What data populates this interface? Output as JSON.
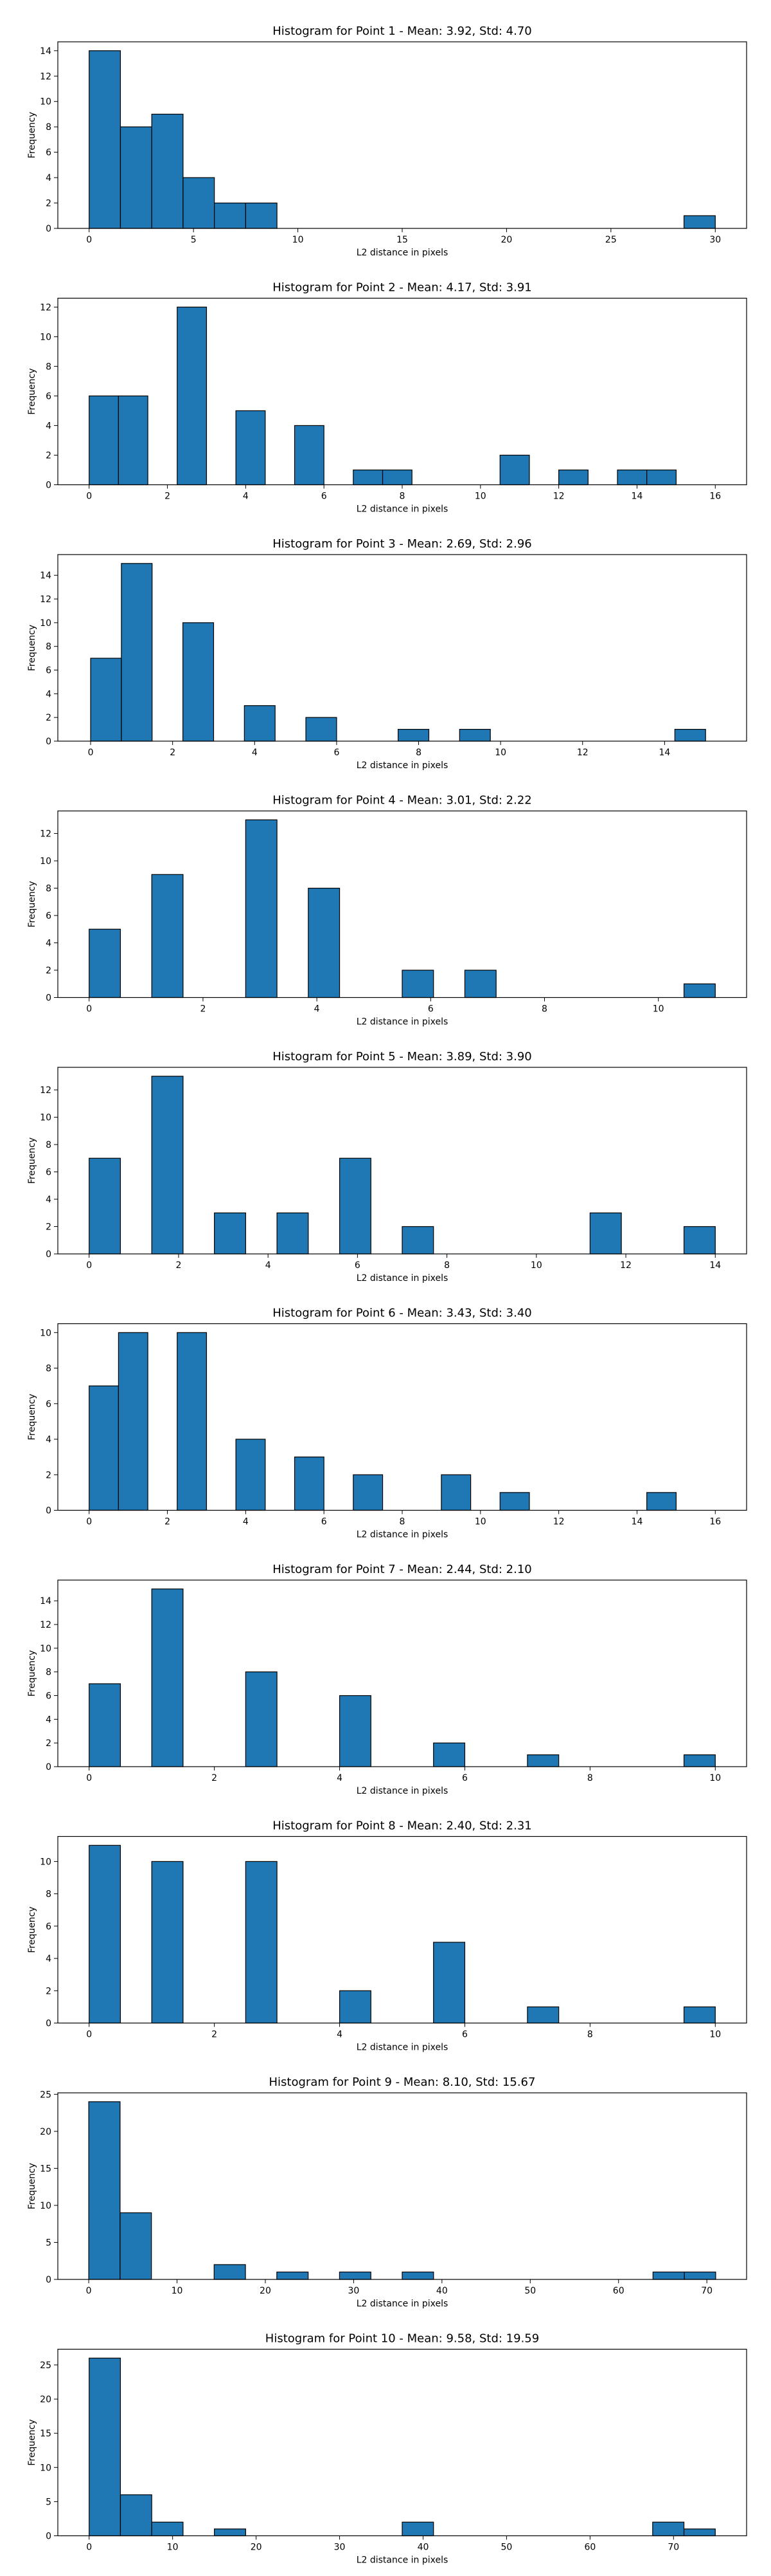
{
  "figure": {
    "bar_color": "#1f77b4",
    "edge_color": "#000000"
  },
  "chart_data": [
    {
      "type": "bar",
      "title": "Histogram for Point 1 - Mean: 3.92, Std: 4.70",
      "xlabel": "L2 distance in pixels",
      "ylabel": "Frequency",
      "xlim": [
        -1.5,
        31.5
      ],
      "ylim": [
        0,
        14.7
      ],
      "xticks": [
        0,
        5,
        10,
        15,
        20,
        25,
        30
      ],
      "yticks": [
        0,
        2,
        4,
        6,
        8,
        10,
        12,
        14
      ],
      "bins": [
        {
          "x0": 0.0,
          "x1": 1.5,
          "count": 14
        },
        {
          "x0": 1.5,
          "x1": 3.0,
          "count": 8
        },
        {
          "x0": 3.0,
          "x1": 4.5,
          "count": 9
        },
        {
          "x0": 4.5,
          "x1": 6.0,
          "count": 4
        },
        {
          "x0": 6.0,
          "x1": 7.5,
          "count": 2
        },
        {
          "x0": 7.5,
          "x1": 9.0,
          "count": 2
        },
        {
          "x0": 28.5,
          "x1": 30.0,
          "count": 1
        }
      ]
    },
    {
      "type": "bar",
      "title": "Histogram for Point 2 - Mean: 4.17, Std: 3.91",
      "xlabel": "L2 distance in pixels",
      "ylabel": "Frequency",
      "xlim": [
        -0.8,
        16.8
      ],
      "ylim": [
        0,
        12.6
      ],
      "xticks": [
        0,
        2,
        4,
        6,
        8,
        10,
        12,
        14,
        16
      ],
      "yticks": [
        0,
        2,
        4,
        6,
        8,
        10,
        12
      ],
      "bins": [
        {
          "x0": 0.0,
          "x1": 0.75,
          "count": 6
        },
        {
          "x0": 0.75,
          "x1": 1.5,
          "count": 6
        },
        {
          "x0": 2.25,
          "x1": 3.0,
          "count": 12
        },
        {
          "x0": 3.75,
          "x1": 4.5,
          "count": 5
        },
        {
          "x0": 5.25,
          "x1": 6.0,
          "count": 4
        },
        {
          "x0": 6.75,
          "x1": 7.5,
          "count": 1
        },
        {
          "x0": 7.5,
          "x1": 8.25,
          "count": 1
        },
        {
          "x0": 10.5,
          "x1": 11.25,
          "count": 2
        },
        {
          "x0": 12.0,
          "x1": 12.75,
          "count": 1
        },
        {
          "x0": 13.5,
          "x1": 14.25,
          "count": 1
        },
        {
          "x0": 14.25,
          "x1": 15.0,
          "count": 1
        }
      ]
    },
    {
      "type": "bar",
      "title": "Histogram for Point 3 - Mean: 2.69, Std: 2.96",
      "xlabel": "L2 distance in pixels",
      "ylabel": "Frequency",
      "xlim": [
        -0.8,
        16.0
      ],
      "ylim": [
        0,
        15.75
      ],
      "xticks": [
        0,
        2,
        4,
        6,
        8,
        10,
        12,
        14
      ],
      "yticks": [
        0,
        2,
        4,
        6,
        8,
        10,
        12,
        14
      ],
      "bins": [
        {
          "x0": 0.0,
          "x1": 0.75,
          "count": 7
        },
        {
          "x0": 0.75,
          "x1": 1.5,
          "count": 15
        },
        {
          "x0": 2.25,
          "x1": 3.0,
          "count": 10
        },
        {
          "x0": 3.75,
          "x1": 4.5,
          "count": 3
        },
        {
          "x0": 5.25,
          "x1": 6.0,
          "count": 2
        },
        {
          "x0": 7.5,
          "x1": 8.25,
          "count": 1
        },
        {
          "x0": 9.0,
          "x1": 9.75,
          "count": 1
        },
        {
          "x0": 14.25,
          "x1": 15.0,
          "count": 1
        }
      ]
    },
    {
      "type": "bar",
      "title": "Histogram for Point 4 - Mean: 3.01, Std: 2.22",
      "xlabel": "L2 distance in pixels",
      "ylabel": "Frequency",
      "xlim": [
        -0.55,
        11.55
      ],
      "ylim": [
        0,
        13.65
      ],
      "xticks": [
        0,
        2,
        4,
        6,
        8,
        10
      ],
      "yticks": [
        0,
        2,
        4,
        6,
        8,
        10,
        12
      ],
      "bins": [
        {
          "x0": 0.0,
          "x1": 0.55,
          "count": 5
        },
        {
          "x0": 1.1,
          "x1": 1.65,
          "count": 9
        },
        {
          "x0": 2.75,
          "x1": 3.3,
          "count": 13
        },
        {
          "x0": 3.85,
          "x1": 4.4,
          "count": 8
        },
        {
          "x0": 5.5,
          "x1": 6.05,
          "count": 2
        },
        {
          "x0": 6.6,
          "x1": 7.15,
          "count": 2
        },
        {
          "x0": 10.45,
          "x1": 11.0,
          "count": 1
        }
      ]
    },
    {
      "type": "bar",
      "title": "Histogram for Point 5 - Mean: 3.89, Std: 3.90",
      "xlabel": "L2 distance in pixels",
      "ylabel": "Frequency",
      "xlim": [
        -0.7,
        14.7
      ],
      "ylim": [
        0,
        13.65
      ],
      "xticks": [
        0,
        2,
        4,
        6,
        8,
        10,
        12,
        14
      ],
      "yticks": [
        0,
        2,
        4,
        6,
        8,
        10,
        12
      ],
      "bins": [
        {
          "x0": 0.0,
          "x1": 0.7,
          "count": 7
        },
        {
          "x0": 1.4,
          "x1": 2.1,
          "count": 13
        },
        {
          "x0": 2.8,
          "x1": 3.5,
          "count": 3
        },
        {
          "x0": 4.2,
          "x1": 4.9,
          "count": 3
        },
        {
          "x0": 5.6,
          "x1": 6.3,
          "count": 7
        },
        {
          "x0": 7.0,
          "x1": 7.7,
          "count": 2
        },
        {
          "x0": 11.2,
          "x1": 11.9,
          "count": 3
        },
        {
          "x0": 13.3,
          "x1": 14.0,
          "count": 2
        }
      ]
    },
    {
      "type": "bar",
      "title": "Histogram for Point 6 - Mean: 3.43, Std: 3.40",
      "xlabel": "L2 distance in pixels",
      "ylabel": "Frequency",
      "xlim": [
        -0.8,
        16.8
      ],
      "ylim": [
        0,
        10.5
      ],
      "xticks": [
        0,
        2,
        4,
        6,
        8,
        10,
        12,
        14,
        16
      ],
      "yticks": [
        0,
        2,
        4,
        6,
        8,
        10
      ],
      "bins": [
        {
          "x0": 0.0,
          "x1": 0.75,
          "count": 7
        },
        {
          "x0": 0.75,
          "x1": 1.5,
          "count": 10
        },
        {
          "x0": 2.25,
          "x1": 3.0,
          "count": 10
        },
        {
          "x0": 3.75,
          "x1": 4.5,
          "count": 4
        },
        {
          "x0": 5.25,
          "x1": 6.0,
          "count": 3
        },
        {
          "x0": 6.75,
          "x1": 7.5,
          "count": 2
        },
        {
          "x0": 9.0,
          "x1": 9.75,
          "count": 2
        },
        {
          "x0": 10.5,
          "x1": 11.25,
          "count": 1
        },
        {
          "x0": 14.25,
          "x1": 15.0,
          "count": 1
        }
      ]
    },
    {
      "type": "bar",
      "title": "Histogram for Point 7 - Mean: 2.44, Std: 2.10",
      "xlabel": "L2 distance in pixels",
      "ylabel": "Frequency",
      "xlim": [
        -0.5,
        10.5
      ],
      "ylim": [
        0,
        15.75
      ],
      "xticks": [
        0,
        2,
        4,
        6,
        8,
        10
      ],
      "yticks": [
        0,
        2,
        4,
        6,
        8,
        10,
        12,
        14
      ],
      "bins": [
        {
          "x0": 0.0,
          "x1": 0.5,
          "count": 7
        },
        {
          "x0": 1.0,
          "x1": 1.5,
          "count": 15
        },
        {
          "x0": 2.5,
          "x1": 3.0,
          "count": 8
        },
        {
          "x0": 4.0,
          "x1": 4.5,
          "count": 6
        },
        {
          "x0": 5.5,
          "x1": 6.0,
          "count": 2
        },
        {
          "x0": 7.0,
          "x1": 7.5,
          "count": 1
        },
        {
          "x0": 9.5,
          "x1": 10.0,
          "count": 1
        }
      ]
    },
    {
      "type": "bar",
      "title": "Histogram for Point 8 - Mean: 2.40, Std: 2.31",
      "xlabel": "L2 distance in pixels",
      "ylabel": "Frequency",
      "xlim": [
        -0.5,
        10.5
      ],
      "ylim": [
        0,
        11.55
      ],
      "xticks": [
        0,
        2,
        4,
        6,
        8,
        10
      ],
      "yticks": [
        0,
        2,
        4,
        6,
        8,
        10
      ],
      "bins": [
        {
          "x0": 0.0,
          "x1": 0.5,
          "count": 11
        },
        {
          "x0": 1.0,
          "x1": 1.5,
          "count": 10
        },
        {
          "x0": 2.5,
          "x1": 3.0,
          "count": 10
        },
        {
          "x0": 4.0,
          "x1": 4.5,
          "count": 2
        },
        {
          "x0": 5.5,
          "x1": 6.0,
          "count": 5
        },
        {
          "x0": 7.0,
          "x1": 7.5,
          "count": 1
        },
        {
          "x0": 9.5,
          "x1": 10.0,
          "count": 1
        }
      ]
    },
    {
      "type": "bar",
      "title": "Histogram for Point 9 - Mean: 8.10, Std: 15.67",
      "xlabel": "L2 distance in pixels",
      "ylabel": "Frequency",
      "xlim": [
        -3.5,
        74.5
      ],
      "ylim": [
        0,
        25.2
      ],
      "xticks": [
        0,
        10,
        20,
        30,
        40,
        50,
        60,
        70
      ],
      "yticks": [
        0,
        5,
        10,
        15,
        20,
        25
      ],
      "bins": [
        {
          "x0": 0.0,
          "x1": 3.55,
          "count": 24
        },
        {
          "x0": 3.55,
          "x1": 7.1,
          "count": 9
        },
        {
          "x0": 14.2,
          "x1": 17.75,
          "count": 2
        },
        {
          "x0": 21.3,
          "x1": 24.85,
          "count": 1
        },
        {
          "x0": 28.4,
          "x1": 31.95,
          "count": 1
        },
        {
          "x0": 35.5,
          "x1": 39.05,
          "count": 1
        },
        {
          "x0": 63.9,
          "x1": 67.45,
          "count": 1
        },
        {
          "x0": 67.45,
          "x1": 71.0,
          "count": 1
        }
      ]
    },
    {
      "type": "bar",
      "title": "Histogram for Point 10 - Mean: 9.58, Std: 19.59",
      "xlabel": "L2 distance in pixels",
      "ylabel": "Frequency",
      "xlim": [
        -3.75,
        78.75
      ],
      "ylim": [
        0,
        27.3
      ],
      "xticks": [
        0,
        10,
        20,
        30,
        40,
        50,
        60,
        70
      ],
      "yticks": [
        0,
        5,
        10,
        15,
        20,
        25
      ],
      "bins": [
        {
          "x0": 0.0,
          "x1": 3.75,
          "count": 26
        },
        {
          "x0": 3.75,
          "x1": 7.5,
          "count": 6
        },
        {
          "x0": 7.5,
          "x1": 11.25,
          "count": 2
        },
        {
          "x0": 15.0,
          "x1": 18.75,
          "count": 1
        },
        {
          "x0": 37.5,
          "x1": 41.25,
          "count": 2
        },
        {
          "x0": 67.5,
          "x1": 71.25,
          "count": 2
        },
        {
          "x0": 71.25,
          "x1": 75.0,
          "count": 1
        }
      ]
    }
  ]
}
